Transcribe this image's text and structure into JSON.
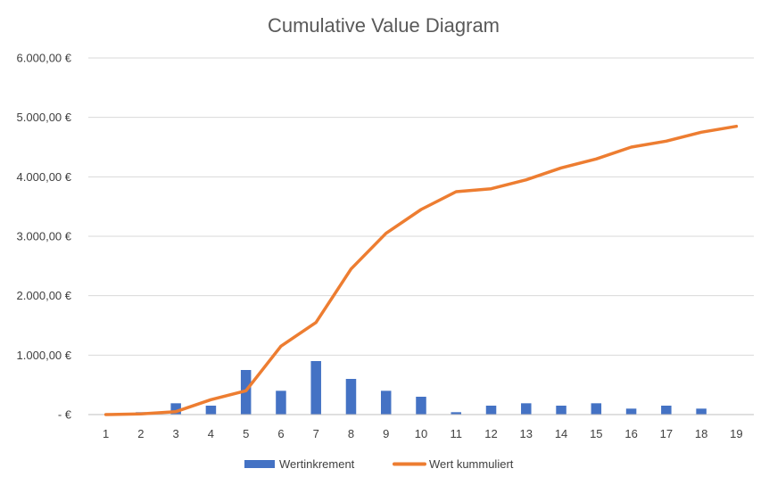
{
  "chart_data": {
    "type": "bar+line",
    "title": "Cumulative Value Diagram",
    "xlabel": "",
    "ylabel": "",
    "categories": [
      "1",
      "2",
      "3",
      "4",
      "5",
      "6",
      "7",
      "8",
      "9",
      "10",
      "11",
      "12",
      "13",
      "14",
      "15",
      "16",
      "17",
      "18",
      "19"
    ],
    "ylim": [
      0,
      6000
    ],
    "yticks": [
      0,
      1000,
      2000,
      3000,
      4000,
      5000,
      6000
    ],
    "ytick_labels": [
      "-   €",
      "1.000,00 €",
      "2.000,00 €",
      "3.000,00 €",
      "4.000,00 €",
      "5.000,00 €",
      "6.000,00 €"
    ],
    "grid": true,
    "legend_position": "bottom",
    "series": [
      {
        "name": "Wertinkrement",
        "type": "bar",
        "color": "#4472C4",
        "values": [
          0,
          40,
          190,
          150,
          750,
          400,
          900,
          600,
          400,
          300,
          40,
          150,
          190,
          150,
          190,
          100,
          150,
          100,
          0
        ]
      },
      {
        "name": "Wert kummuliert",
        "type": "line",
        "color": "#ED7D31",
        "values": [
          0,
          10,
          50,
          250,
          400,
          1150,
          1550,
          2450,
          3050,
          3450,
          3750,
          3800,
          3950,
          4150,
          4300,
          4500,
          4600,
          4750,
          4850
        ]
      }
    ]
  }
}
